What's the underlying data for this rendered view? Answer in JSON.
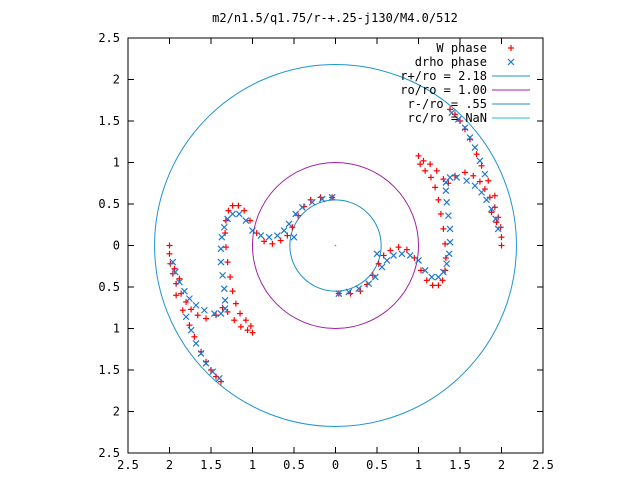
{
  "chart_data": {
    "type": "scatter",
    "title": "m2/n1.5/q1.75/r-+.25-j130/M4.0/512",
    "xlim": [
      -2.5,
      2.5
    ],
    "ylim": [
      -2.5,
      2.5
    ],
    "x_ticks": [
      {
        "v": -2.5,
        "label": "2.5"
      },
      {
        "v": -2.0,
        "label": "2"
      },
      {
        "v": -1.5,
        "label": "1.5"
      },
      {
        "v": -1.0,
        "label": "1"
      },
      {
        "v": -0.5,
        "label": "0.5"
      },
      {
        "v": 0.0,
        "label": "0"
      },
      {
        "v": 0.5,
        "label": "0.5"
      },
      {
        "v": 1.0,
        "label": "1"
      },
      {
        "v": 1.5,
        "label": "1.5"
      },
      {
        "v": 2.0,
        "label": "2"
      },
      {
        "v": 2.5,
        "label": "2.5"
      }
    ],
    "y_ticks": [
      {
        "v": 2.5,
        "label": "2.5"
      },
      {
        "v": 2.0,
        "label": "2"
      },
      {
        "v": 1.5,
        "label": "1.5"
      },
      {
        "v": 1.0,
        "label": "1"
      },
      {
        "v": 0.5,
        "label": "0.5"
      },
      {
        "v": 0.0,
        "label": "0"
      },
      {
        "v": -0.5,
        "label": "0.5"
      },
      {
        "v": -1.0,
        "label": "1"
      },
      {
        "v": -1.5,
        "label": "1.5"
      },
      {
        "v": -2.0,
        "label": "2"
      },
      {
        "v": -2.5,
        "label": "2.5"
      }
    ],
    "legend_position": "top-right",
    "grid": false,
    "point_series": [
      {
        "name": "W phase",
        "marker": "+",
        "color": "#ff0000",
        "points": [
          [
            -2.0,
            0.0
          ],
          [
            -2.0,
            -0.1
          ],
          [
            -1.99,
            -0.22
          ],
          [
            -1.96,
            -0.34
          ],
          [
            -1.92,
            -0.46
          ],
          [
            -1.86,
            -0.58
          ],
          [
            -1.8,
            -0.68
          ],
          [
            -1.74,
            -0.77
          ],
          [
            -1.66,
            -0.84
          ],
          [
            -1.56,
            -0.88
          ],
          [
            -1.44,
            -0.84
          ],
          [
            -1.36,
            -0.75
          ],
          [
            -1.3,
            -0.8
          ],
          [
            -1.22,
            -0.9
          ],
          [
            -1.14,
            -0.98
          ],
          [
            -1.06,
            -1.02
          ],
          [
            -1.0,
            -1.05
          ],
          [
            -1.02,
            -0.97
          ],
          [
            -1.08,
            -0.9
          ],
          [
            -1.15,
            -0.82
          ],
          [
            -1.2,
            -0.7
          ],
          [
            -1.24,
            -0.55
          ],
          [
            -1.27,
            -0.38
          ],
          [
            -1.3,
            -0.2
          ],
          [
            -1.32,
            -0.02
          ],
          [
            -1.33,
            0.15
          ],
          [
            -1.32,
            0.3
          ],
          [
            -1.29,
            0.42
          ],
          [
            -1.24,
            0.48
          ],
          [
            -1.17,
            0.48
          ],
          [
            -1.1,
            0.42
          ],
          [
            -1.03,
            0.3
          ],
          [
            -0.95,
            0.15
          ],
          [
            -0.86,
            0.05
          ],
          [
            -0.76,
            0.02
          ],
          [
            -0.66,
            0.06
          ],
          [
            -0.58,
            0.12
          ],
          [
            -0.52,
            0.22
          ],
          [
            -0.45,
            0.36
          ],
          [
            -0.38,
            0.47
          ],
          [
            -0.3,
            0.55
          ],
          [
            -0.18,
            0.58
          ],
          [
            -0.04,
            0.58
          ],
          [
            2.0,
            0.0
          ],
          [
            2.0,
            0.1
          ],
          [
            1.99,
            0.22
          ],
          [
            1.96,
            0.34
          ],
          [
            1.92,
            0.46
          ],
          [
            1.86,
            0.58
          ],
          [
            1.8,
            0.68
          ],
          [
            1.74,
            0.77
          ],
          [
            1.66,
            0.84
          ],
          [
            1.56,
            0.88
          ],
          [
            1.44,
            0.84
          ],
          [
            1.36,
            0.75
          ],
          [
            1.3,
            0.8
          ],
          [
            1.22,
            0.9
          ],
          [
            1.14,
            0.98
          ],
          [
            1.06,
            1.02
          ],
          [
            1.0,
            1.08
          ],
          [
            1.02,
            0.98
          ],
          [
            1.08,
            0.9
          ],
          [
            1.15,
            0.82
          ],
          [
            1.2,
            0.7
          ],
          [
            1.24,
            0.55
          ],
          [
            1.27,
            0.38
          ],
          [
            1.3,
            0.2
          ],
          [
            1.32,
            0.02
          ],
          [
            1.33,
            -0.15
          ],
          [
            1.32,
            -0.3
          ],
          [
            1.29,
            -0.42
          ],
          [
            1.24,
            -0.48
          ],
          [
            1.17,
            -0.48
          ],
          [
            1.1,
            -0.42
          ],
          [
            1.03,
            -0.3
          ],
          [
            0.95,
            -0.15
          ],
          [
            0.86,
            -0.05
          ],
          [
            0.76,
            -0.02
          ],
          [
            0.66,
            -0.06
          ],
          [
            0.58,
            -0.12
          ],
          [
            0.52,
            -0.22
          ],
          [
            0.45,
            -0.36
          ],
          [
            0.38,
            -0.47
          ],
          [
            0.3,
            -0.55
          ],
          [
            0.18,
            -0.58
          ],
          [
            0.04,
            -0.58
          ],
          [
            -1.92,
            -0.6
          ],
          [
            -1.84,
            -0.78
          ],
          [
            -1.76,
            -0.96
          ],
          [
            -1.7,
            -1.1
          ],
          [
            -1.62,
            -1.28
          ],
          [
            -1.56,
            -1.4
          ],
          [
            -1.5,
            -1.5
          ],
          [
            -1.44,
            -1.58
          ],
          [
            -1.38,
            -1.64
          ],
          [
            -1.88,
            -0.4
          ],
          [
            -1.94,
            -0.28
          ],
          [
            1.92,
            0.6
          ],
          [
            1.84,
            0.78
          ],
          [
            1.76,
            0.96
          ],
          [
            1.7,
            1.1
          ],
          [
            1.62,
            1.28
          ],
          [
            1.56,
            1.4
          ],
          [
            1.5,
            1.5
          ],
          [
            1.44,
            1.58
          ],
          [
            1.38,
            1.64
          ],
          [
            1.88,
            0.4
          ],
          [
            1.94,
            0.28
          ]
        ]
      },
      {
        "name": "drho phase",
        "marker": "x",
        "color": "#1f78d2",
        "points": [
          [
            -1.96,
            -0.2
          ],
          [
            -1.93,
            -0.32
          ],
          [
            -1.88,
            -0.44
          ],
          [
            -1.82,
            -0.55
          ],
          [
            -1.76,
            -0.64
          ],
          [
            -1.68,
            -0.72
          ],
          [
            -1.58,
            -0.78
          ],
          [
            -1.46,
            -0.82
          ],
          [
            -1.38,
            -0.82
          ],
          [
            -1.33,
            -0.76
          ],
          [
            -1.33,
            -0.66
          ],
          [
            -1.34,
            -0.52
          ],
          [
            -1.36,
            -0.36
          ],
          [
            -1.38,
            -0.2
          ],
          [
            -1.38,
            -0.04
          ],
          [
            -1.37,
            0.1
          ],
          [
            -1.34,
            0.22
          ],
          [
            -1.3,
            0.32
          ],
          [
            -1.24,
            0.38
          ],
          [
            -1.16,
            0.38
          ],
          [
            -1.08,
            0.3
          ],
          [
            -1.0,
            0.18
          ],
          [
            -0.9,
            0.12
          ],
          [
            -0.8,
            0.1
          ],
          [
            -0.7,
            0.12
          ],
          [
            -0.62,
            0.18
          ],
          [
            -0.56,
            0.26
          ],
          [
            -0.48,
            0.38
          ],
          [
            -0.4,
            0.46
          ],
          [
            -0.28,
            0.52
          ],
          [
            -0.16,
            0.56
          ],
          [
            -0.04,
            0.58
          ],
          [
            1.96,
            0.2
          ],
          [
            1.93,
            0.32
          ],
          [
            1.88,
            0.44
          ],
          [
            1.82,
            0.55
          ],
          [
            1.76,
            0.64
          ],
          [
            1.68,
            0.72
          ],
          [
            1.58,
            0.78
          ],
          [
            1.46,
            0.82
          ],
          [
            1.38,
            0.82
          ],
          [
            1.33,
            0.76
          ],
          [
            1.33,
            0.66
          ],
          [
            1.34,
            0.52
          ],
          [
            1.36,
            0.36
          ],
          [
            1.38,
            0.2
          ],
          [
            1.38,
            0.04
          ],
          [
            1.37,
            -0.1
          ],
          [
            1.34,
            -0.22
          ],
          [
            1.3,
            -0.32
          ],
          [
            1.24,
            -0.38
          ],
          [
            1.16,
            -0.38
          ],
          [
            1.08,
            -0.3
          ],
          [
            1.0,
            -0.18
          ],
          [
            0.9,
            -0.12
          ],
          [
            0.8,
            -0.1
          ],
          [
            0.7,
            -0.12
          ],
          [
            0.62,
            -0.18
          ],
          [
            0.56,
            -0.26
          ],
          [
            0.48,
            -0.38
          ],
          [
            0.4,
            -0.46
          ],
          [
            0.28,
            -0.52
          ],
          [
            0.16,
            -0.56
          ],
          [
            0.04,
            -0.58
          ],
          [
            -1.4,
            -1.6
          ],
          [
            -1.48,
            -1.52
          ],
          [
            -1.56,
            -1.42
          ],
          [
            -1.62,
            -1.3
          ],
          [
            -1.68,
            -1.18
          ],
          [
            -1.74,
            -1.02
          ],
          [
            -1.8,
            -0.86
          ],
          [
            1.4,
            1.6
          ],
          [
            1.48,
            1.52
          ],
          [
            1.56,
            1.42
          ],
          [
            1.62,
            1.3
          ],
          [
            1.68,
            1.18
          ],
          [
            1.74,
            1.02
          ],
          [
            1.8,
            0.86
          ],
          [
            -0.5,
            0.1
          ],
          [
            0.5,
            -0.1
          ]
        ]
      }
    ],
    "circle_series": [
      {
        "name": "r+/ro = 2.18",
        "radius": 2.18,
        "color": "#1f93d2"
      },
      {
        "name": "ro/ro = 1.00",
        "radius": 1.0,
        "color": "#a020a0"
      },
      {
        "name": "r-/ro = .55",
        "radius": 0.55,
        "color": "#1f8fc0"
      },
      {
        "name": "rc/ro = NaN",
        "radius": null,
        "color": "#20c0d8"
      }
    ],
    "colors": {
      "axis": "#000000",
      "background": "#ffffff"
    }
  }
}
